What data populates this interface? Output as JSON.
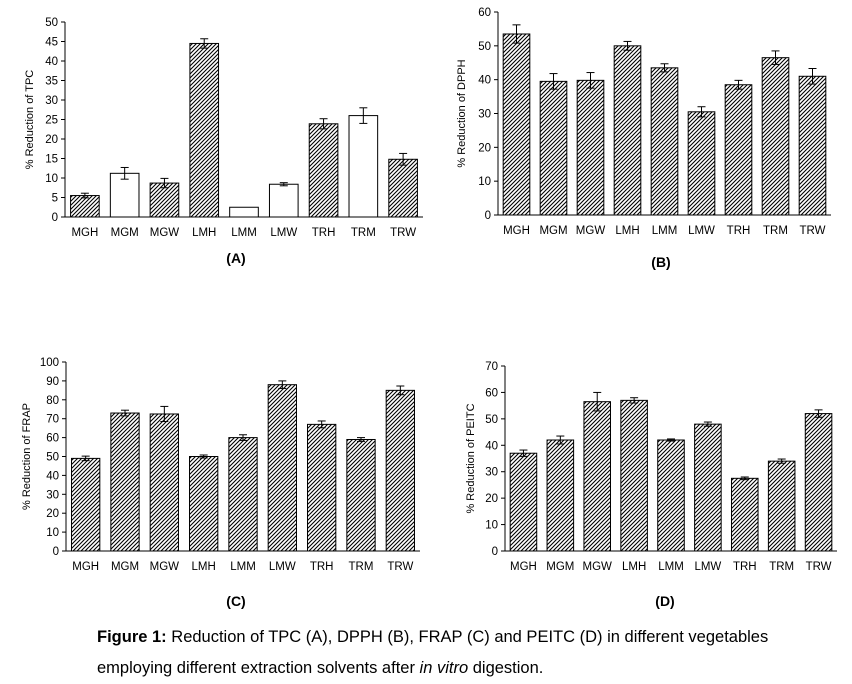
{
  "chart_data": [
    {
      "id": "A",
      "type": "bar",
      "panel_label": "(A)",
      "ylabel": "% Reduction  of TPC",
      "ylim": [
        0,
        50
      ],
      "ytick_step": 5,
      "categories": [
        "MGH",
        "MGM",
        "MGW",
        "LMH",
        "LMM",
        "LMW",
        "TRH",
        "TRM",
        "TRW"
      ],
      "values": [
        5.5,
        11.2,
        8.7,
        44.5,
        2.5,
        8.4,
        23.9,
        26.0,
        14.8
      ],
      "errors": [
        0.6,
        1.5,
        1.2,
        1.2,
        0,
        0.4,
        1.3,
        2.0,
        1.5
      ],
      "hatched": [
        true,
        false,
        true,
        true,
        false,
        false,
        true,
        false,
        true
      ],
      "grid": false
    },
    {
      "id": "B",
      "type": "bar",
      "panel_label": "(B)",
      "ylabel": "% Reduction of DPPH",
      "ylim": [
        0,
        60
      ],
      "ytick_step": 10,
      "categories": [
        "MGH",
        "MGM",
        "MGW",
        "LMH",
        "LMM",
        "LMW",
        "TRH",
        "TRM",
        "TRW"
      ],
      "values": [
        53.5,
        39.5,
        39.8,
        50.0,
        43.5,
        30.5,
        38.5,
        46.5,
        41.0
      ],
      "errors": [
        2.7,
        2.3,
        2.3,
        1.3,
        1.2,
        1.5,
        1.3,
        2.0,
        2.3
      ],
      "hatched": [
        true,
        true,
        true,
        true,
        true,
        true,
        true,
        true,
        true
      ],
      "grid": false
    },
    {
      "id": "C",
      "type": "bar",
      "panel_label": "(C)",
      "ylabel": "% Reduction of FRAP",
      "ylim": [
        0,
        100
      ],
      "ytick_step": 10,
      "categories": [
        "MGH",
        "MGM",
        "MGW",
        "LMH",
        "LMM",
        "LMW",
        "TRH",
        "TRM",
        "TRW"
      ],
      "values": [
        49.0,
        73.0,
        72.5,
        50.0,
        60.0,
        88.0,
        67.0,
        59.0,
        85.0
      ],
      "errors": [
        1.2,
        1.5,
        4.0,
        0.8,
        1.5,
        2.0,
        1.8,
        1.0,
        2.3
      ],
      "hatched": [
        true,
        true,
        true,
        true,
        true,
        true,
        true,
        true,
        true
      ],
      "grid": false
    },
    {
      "id": "D",
      "type": "bar",
      "panel_label": "(D)",
      "ylabel": "% Reduction of PEITC",
      "ylim": [
        0,
        70
      ],
      "ytick_step": 10,
      "categories": [
        "MGH",
        "MGM",
        "MGW",
        "LMH",
        "LMM",
        "LMW",
        "TRH",
        "TRM",
        "TRW"
      ],
      "values": [
        37.0,
        42.0,
        56.5,
        57.0,
        42.0,
        48.0,
        27.5,
        34.0,
        52.0
      ],
      "errors": [
        1.2,
        1.5,
        3.5,
        1.0,
        0.4,
        0.8,
        0.5,
        0.8,
        1.4
      ],
      "hatched": [
        true,
        true,
        true,
        true,
        true,
        true,
        true,
        true,
        true
      ],
      "grid": false
    }
  ],
  "caption": {
    "figure_label": "Figure 1:",
    "text_before_italic": " Reduction of TPC (A), DPPH (B), FRAP (C) and PEITC (D) in different vegetables employing different extraction  solvents after ",
    "italic": "in vitro",
    "text_after_italic": " digestion."
  },
  "colors": {
    "bar_fill_plain": "#ffffff",
    "bar_stroke": "#000000",
    "hatch": "#000000"
  }
}
